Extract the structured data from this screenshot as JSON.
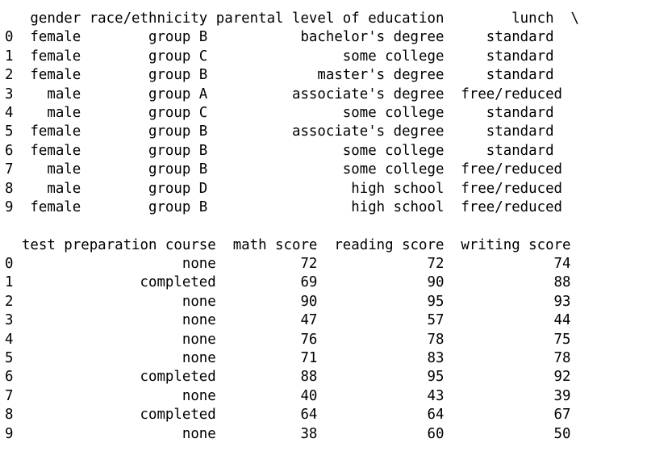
{
  "output": {
    "header_top": "   gender race/ethnicity parental level of education        lunch  \\",
    "rows_top": [
      "0  female        group B           bachelor's degree     standard",
      "1  female        group C                some college     standard",
      "2  female        group B             master's degree     standard",
      "3    male        group A          associate's degree  free/reduced",
      "4    male        group C                some college     standard",
      "5  female        group B          associate's degree     standard",
      "6  female        group B                some college     standard",
      "7    male        group B                some college  free/reduced",
      "8    male        group D                 high school  free/reduced",
      "9  female        group B                 high school  free/reduced"
    ],
    "header_bottom": "  test preparation course  math score  reading score  writing score",
    "rows_bottom": [
      "0                    none          72             72             74",
      "1               completed          69             90             88",
      "2                    none          90             95             93",
      "3                    none          47             57             44",
      "4                    none          76             78             75",
      "5                    none          71             83             78",
      "6               completed          88             95             92",
      "7                    none          40             43             39",
      "8               completed          64             64             67",
      "9                    none          38             60             50"
    ]
  }
}
